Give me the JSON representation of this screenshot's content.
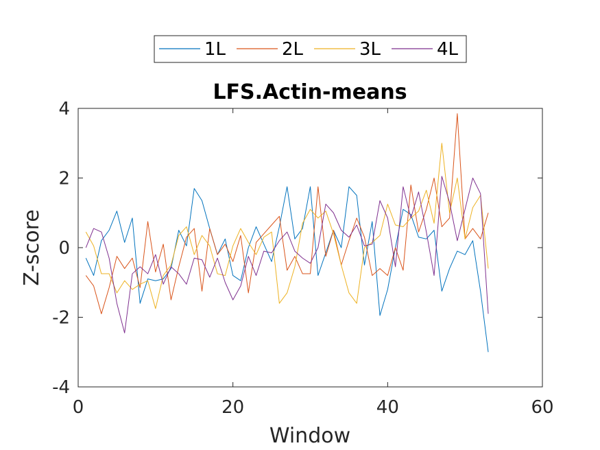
{
  "chart_data": {
    "type": "line",
    "title": "LFS.Actin-means",
    "xlabel": "Window",
    "ylabel": "Z-score",
    "xlim": [
      0,
      60
    ],
    "ylim": [
      -4,
      4
    ],
    "xticks": [
      0,
      20,
      40,
      60
    ],
    "yticks": [
      -4,
      -2,
      0,
      2,
      4
    ],
    "grid": false,
    "legend_position": "top-outside-horizontal",
    "x": [
      1,
      2,
      3,
      4,
      5,
      6,
      7,
      8,
      9,
      10,
      11,
      12,
      13,
      14,
      15,
      16,
      17,
      18,
      19,
      20,
      21,
      22,
      23,
      24,
      25,
      26,
      27,
      28,
      29,
      30,
      31,
      32,
      33,
      34,
      35,
      36,
      37,
      38,
      39,
      40,
      41,
      42,
      43,
      44,
      45,
      46,
      47,
      48,
      49,
      50,
      51,
      52,
      53
    ],
    "series": [
      {
        "name": "1L",
        "color": "#0072BD",
        "values": [
          -0.3,
          -0.8,
          0.2,
          0.5,
          1.05,
          0.15,
          0.85,
          -1.6,
          -0.9,
          -0.95,
          -0.9,
          -0.6,
          0.5,
          0.05,
          1.7,
          1.35,
          0.55,
          -0.2,
          0.25,
          -0.8,
          -0.95,
          0.0,
          0.6,
          0.1,
          -0.4,
          0.6,
          1.75,
          0.25,
          0.55,
          1.75,
          -0.8,
          -0.15,
          0.5,
          0.0,
          1.75,
          1.5,
          -0.5,
          0.75,
          -1.95,
          -1.2,
          0.0,
          1.1,
          0.95,
          0.3,
          0.25,
          0.5,
          -1.25,
          -0.6,
          -0.1,
          -0.2,
          0.2,
          -1.25,
          -3.0
        ]
      },
      {
        "name": "2L",
        "color": "#D95319",
        "values": [
          -0.8,
          -1.1,
          -1.9,
          -1.15,
          -0.25,
          -0.6,
          -0.3,
          -1.15,
          0.75,
          -0.7,
          0.1,
          -1.5,
          -0.55,
          0.3,
          0.55,
          -1.25,
          0.55,
          -0.2,
          0.1,
          -0.4,
          0.35,
          -1.3,
          0.15,
          0.4,
          0.65,
          0.9,
          -0.65,
          -0.25,
          -0.75,
          -0.75,
          1.75,
          -0.25,
          0.5,
          -0.5,
          0.2,
          0.85,
          0.3,
          -0.8,
          -0.6,
          -0.8,
          0.0,
          -0.65,
          1.8,
          0.45,
          1.1,
          2.0,
          0.6,
          0.85,
          3.85,
          0.25,
          0.55,
          0.25,
          1.0
        ]
      },
      {
        "name": "3L",
        "color": "#EDB120",
        "values": [
          0.45,
          0.05,
          -0.75,
          -0.75,
          -1.3,
          -0.95,
          -1.2,
          -1.05,
          -0.95,
          -1.75,
          -0.8,
          -0.5,
          0.35,
          0.6,
          -0.2,
          0.35,
          0.05,
          -0.75,
          -0.8,
          0.05,
          0.55,
          0.15,
          -0.2,
          0.3,
          0.45,
          -1.6,
          -1.3,
          -0.55,
          0.7,
          1.1,
          0.85,
          1.05,
          0.4,
          -0.5,
          -1.3,
          -1.6,
          0.0,
          0.15,
          0.35,
          1.25,
          0.65,
          0.6,
          0.85,
          1.05,
          1.65,
          0.7,
          3.0,
          1.0,
          2.0,
          0.25,
          1.15,
          1.5,
          -0.6
        ]
      },
      {
        "name": "4L",
        "color": "#7E2F8E",
        "values": [
          0.0,
          0.55,
          0.45,
          -0.3,
          -1.6,
          -2.45,
          -0.75,
          -0.55,
          -0.75,
          -0.2,
          -1.05,
          -0.55,
          -0.75,
          -1.05,
          -0.3,
          -0.35,
          -0.85,
          -0.3,
          -1.0,
          -1.5,
          -1.1,
          -0.25,
          -0.8,
          -0.1,
          -0.15,
          0.2,
          0.45,
          -0.1,
          -0.3,
          -0.45,
          0.0,
          1.25,
          1.0,
          0.5,
          0.3,
          0.65,
          0.05,
          0.1,
          1.35,
          0.85,
          -0.55,
          1.75,
          0.85,
          1.6,
          0.45,
          -0.8,
          2.05,
          1.3,
          0.2,
          1.1,
          2.0,
          1.55,
          -1.9
        ]
      }
    ]
  }
}
